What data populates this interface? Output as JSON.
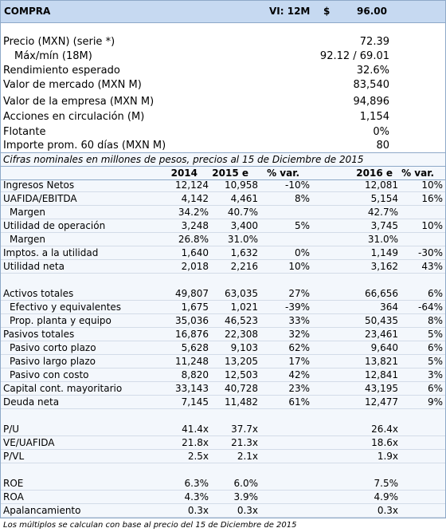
{
  "header": {
    "title": "COMPRA",
    "target_label": "VI: 12M",
    "currency": "$",
    "target_price": "96.00"
  },
  "summary": {
    "rows": [
      [
        "Precio (MXN) (serie *)",
        "72.39"
      ],
      [
        "Máx/mín (18M)",
        "92.12 / 69.01"
      ],
      [
        "Rendimiento esperado",
        "32.6%"
      ],
      [
        "Valor de mercado (MXN M)",
        "83,540"
      ],
      [
        "Valor de la empresa (MXN M)",
        "94,896"
      ],
      [
        "Acciones en circulación (M)",
        "1,154"
      ],
      [
        "Flotante",
        "0%"
      ],
      [
        "Importe prom. 60 días (MXN M)",
        "80"
      ]
    ]
  },
  "table": {
    "note": "Cifras nominales en millones de pesos, precios al 15 de Diciembre de 2015",
    "columns": [
      "2014",
      "2015 e",
      "% var.",
      "2016 e",
      "% var."
    ],
    "sections": [
      [
        {
          "label": "Ingresos Netos",
          "values": [
            "12,124",
            "10,958",
            "-10%",
            "12,081",
            "10%"
          ]
        },
        {
          "label": "UAFIDA/EBITDA",
          "values": [
            "4,142",
            "4,461",
            "8%",
            "5,154",
            "16%"
          ]
        },
        {
          "label": "Margen",
          "indent": true,
          "values": [
            "34.2%",
            "40.7%",
            null,
            "42.7%",
            null
          ]
        },
        {
          "label": "Utilidad de operación",
          "values": [
            "3,248",
            "3,400",
            "5%",
            "3,745",
            "10%"
          ]
        },
        {
          "label": "Margen",
          "indent": true,
          "values": [
            "26.8%",
            "31.0%",
            null,
            "31.0%",
            null
          ]
        },
        {
          "label": "Imptos. a la utilidad",
          "values": [
            "1,640",
            "1,632",
            "0%",
            "1,149",
            "-30%"
          ]
        },
        {
          "label": "Utilidad neta",
          "values": [
            "2,018",
            "2,216",
            "10%",
            "3,162",
            "43%"
          ]
        }
      ],
      [
        {
          "label": "Activos totales",
          "values": [
            "49,807",
            "63,035",
            "27%",
            "66,656",
            "6%"
          ]
        },
        {
          "label": "Efectivo y equivalentes",
          "indent": true,
          "values": [
            "1,675",
            "1,021",
            "-39%",
            "364",
            "-64%"
          ]
        },
        {
          "label": "Prop. planta y equipo",
          "indent": true,
          "values": [
            "35,036",
            "46,523",
            "33%",
            "50,435",
            "8%"
          ]
        },
        {
          "label": "Pasivos totales",
          "values": [
            "16,876",
            "22,308",
            "32%",
            "23,461",
            "5%"
          ]
        },
        {
          "label": "Pasivo corto plazo",
          "indent": true,
          "values": [
            "5,628",
            "9,103",
            "62%",
            "9,640",
            "6%"
          ]
        },
        {
          "label": "Pasivo largo plazo",
          "indent": true,
          "values": [
            "11,248",
            "13,205",
            "17%",
            "13,821",
            "5%"
          ]
        },
        {
          "label": "Pasivo con costo",
          "indent": true,
          "values": [
            "8,820",
            "12,503",
            "42%",
            "12,841",
            "3%"
          ]
        },
        {
          "label": "Capital cont. mayoritario",
          "values": [
            "33,143",
            "40,728",
            "23%",
            "43,195",
            "6%"
          ]
        },
        {
          "label": "Deuda neta",
          "values": [
            "7,145",
            "11,482",
            "61%",
            "12,477",
            "9%"
          ]
        }
      ],
      [
        {
          "label": "P/U",
          "values": [
            "41.4x",
            "37.7x",
            null,
            "26.4x",
            null
          ]
        },
        {
          "label": "VE/UAFIDA",
          "values": [
            "21.8x",
            "21.3x",
            null,
            "18.6x",
            null
          ]
        },
        {
          "label": "P/VL",
          "values": [
            "2.5x",
            "2.1x",
            null,
            "1.9x",
            null
          ]
        }
      ],
      [
        {
          "label": "ROE",
          "values": [
            "6.3%",
            "6.0%",
            null,
            "7.5%",
            null
          ]
        },
        {
          "label": "ROA",
          "values": [
            "4.3%",
            "3.9%",
            null,
            "4.9%",
            null
          ]
        },
        {
          "label": "Apalancamiento",
          "values": [
            "0.3x",
            "0.3x",
            null,
            "0.3x",
            null
          ]
        }
      ]
    ]
  },
  "footnote": "Los múltiplos se calculan con base al precio del 15 de Diciembre de 2015"
}
